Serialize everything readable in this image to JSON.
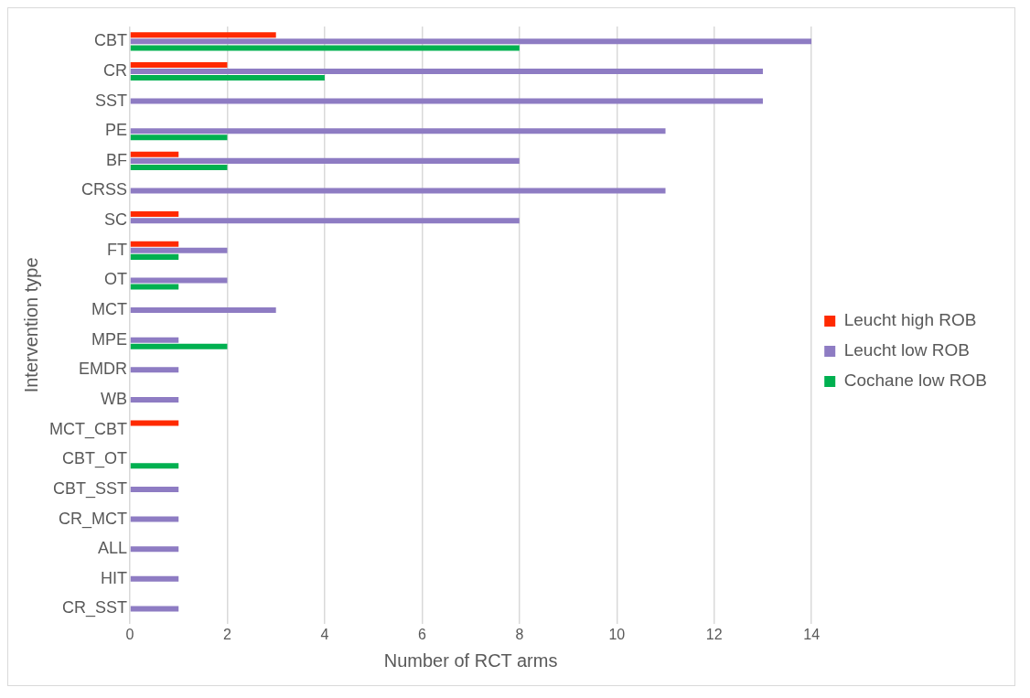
{
  "chart_data": {
    "type": "bar",
    "orientation": "horizontal",
    "xlabel": "Number of RCT arms",
    "ylabel": "Intervention type",
    "categories": [
      "CBT",
      "CR",
      "SST",
      "PE",
      "BF",
      "CRSS",
      "SC",
      "FT",
      "OT",
      "MCT",
      "MPE",
      "EMDR",
      "WB",
      "MCT_CBT",
      "CBT_OT",
      "CBT_SST",
      "CR_MCT",
      "ALL",
      "HIT",
      "CR_SST"
    ],
    "series": [
      {
        "name": "Leucht high ROB",
        "color": "#ff2a00",
        "values": [
          3,
          2,
          null,
          null,
          1,
          null,
          1,
          1,
          null,
          null,
          null,
          null,
          null,
          1,
          null,
          null,
          null,
          null,
          null,
          null
        ]
      },
      {
        "name": "Leucht low ROB",
        "color": "#8e7cc3",
        "values": [
          14,
          13,
          13,
          11,
          8,
          11,
          8,
          2,
          2,
          3,
          1,
          1,
          1,
          null,
          null,
          1,
          1,
          1,
          1,
          1
        ]
      },
      {
        "name": "Cochane low ROB",
        "color": "#00b050",
        "values": [
          8,
          4,
          null,
          2,
          2,
          null,
          null,
          1,
          1,
          null,
          2,
          null,
          null,
          null,
          1,
          null,
          null,
          null,
          null,
          null
        ]
      }
    ],
    "xlim": [
      0,
      14
    ],
    "xticks": [
      0,
      2,
      4,
      6,
      8,
      10,
      12,
      14
    ],
    "grid": "x",
    "legend": "right"
  }
}
